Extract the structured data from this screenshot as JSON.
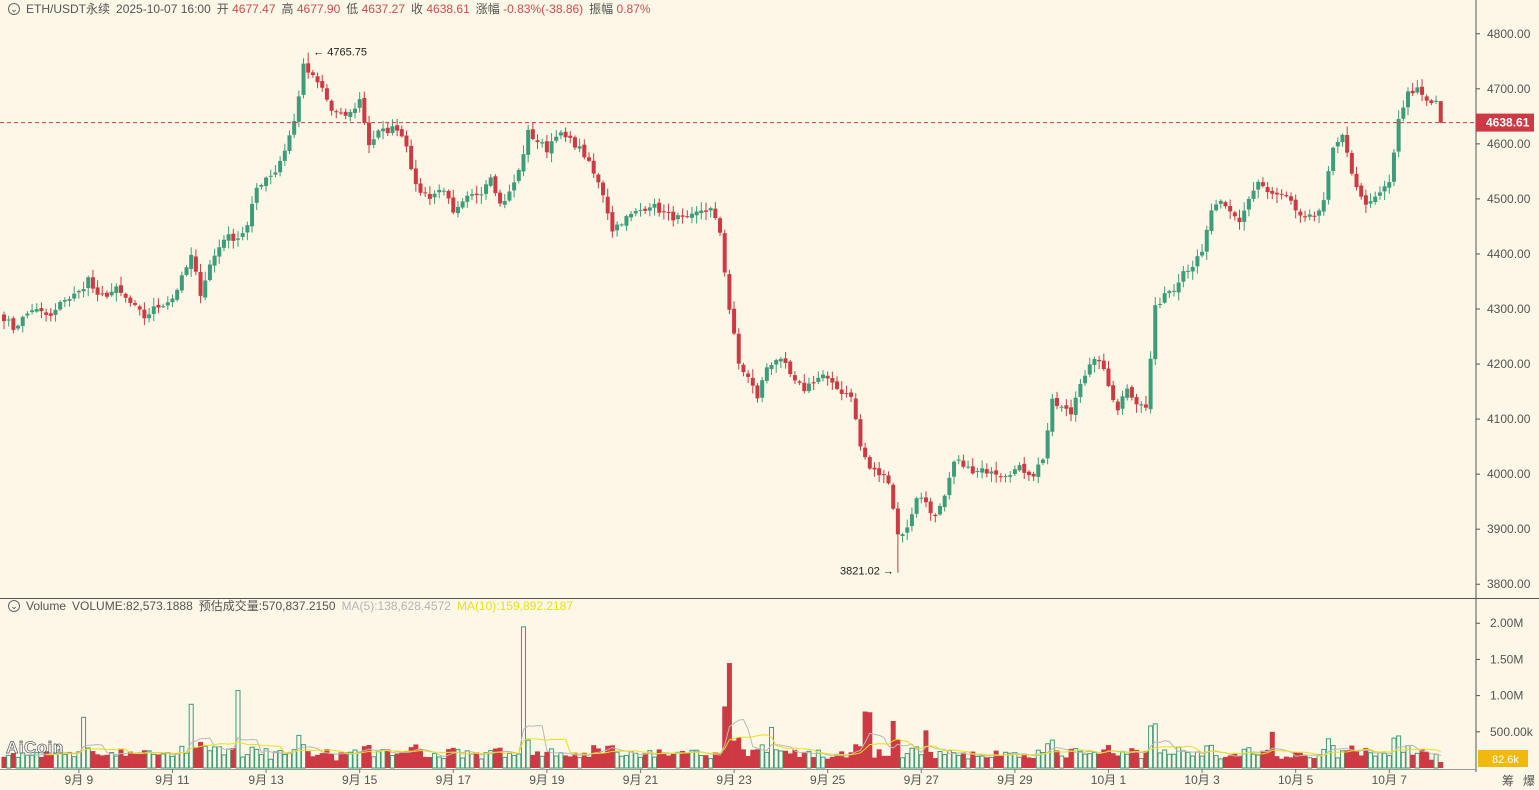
{
  "header": {
    "symbol": "ETH/USDT永续",
    "datetime": "2025-10-07 16:00",
    "open_label": "开",
    "open": "4677.47",
    "high_label": "高",
    "high": "4677.90",
    "low_label": "低",
    "low": "4637.27",
    "close_label": "收",
    "close": "4638.61",
    "change_label": "涨幅",
    "change": "-0.83%(-38.86)",
    "amplitude_label": "振幅",
    "amplitude": "0.87%"
  },
  "volume_header": {
    "name": "Volume",
    "volume": "VOLUME:82,573.1888",
    "estimate": "预估成交量:570,837.2150",
    "ma5": "MA(5):138,628.4572",
    "ma10": "MA(10):159,892.2187"
  },
  "logo": "AiCoin",
  "corner_left": "筹",
  "corner_right": "爆",
  "colors": {
    "up": "#3d9d7b",
    "down": "#cd3a43",
    "background": "#fcf7e6",
    "ma5": "#b9b9b9",
    "ma10": "#ece01a"
  },
  "chart_data": {
    "type": "candlestick",
    "interval": "4h",
    "price_axis": {
      "ticks": [
        3800,
        3900,
        4000,
        4100,
        4200,
        4300,
        4400,
        4500,
        4600,
        4700,
        4800
      ],
      "tick_labels": [
        "3800.00",
        "3900.00",
        "4000.00",
        "4100.00",
        "4200.00",
        "4300.00",
        "4400.00",
        "4500.00",
        "4600.00",
        "4700.00",
        "4800.00"
      ],
      "range": [
        3775,
        4825
      ]
    },
    "volume_axis": {
      "ticks": [
        500000,
        1000000,
        1500000,
        2000000
      ],
      "tick_labels": [
        "500.00k",
        "1.00M",
        "1.50M",
        "2.00M"
      ],
      "range": [
        0,
        2100000
      ]
    },
    "x_labels": [
      {
        "label": "9月 9",
        "index": 16
      },
      {
        "label": "9月 11",
        "index": 36
      },
      {
        "label": "9月 13",
        "index": 56
      },
      {
        "label": "9月 15",
        "index": 76
      },
      {
        "label": "9月 17",
        "index": 96
      },
      {
        "label": "9月 19",
        "index": 116
      },
      {
        "label": "9月 21",
        "index": 136
      },
      {
        "label": "9月 23",
        "index": 156
      },
      {
        "label": "9月 25",
        "index": 176
      },
      {
        "label": "9月 27",
        "index": 196
      },
      {
        "label": "9月 29",
        "index": 216
      },
      {
        "label": "10月 1",
        "index": 236
      },
      {
        "label": "10月 3",
        "index": 256
      },
      {
        "label": "10月 5",
        "index": 276
      },
      {
        "label": "10月 7",
        "index": 296
      }
    ],
    "last_price": 4638.61,
    "last_price_label": "4638.61",
    "last_volume_label": "82.6k",
    "annotations": [
      {
        "text": "4765.75",
        "index": 65,
        "price": 4765.75,
        "type": "high"
      },
      {
        "text": "3821.02",
        "index": 191,
        "price": 3821.02,
        "type": "low"
      }
    ],
    "keypoints": [
      [
        0,
        4285
      ],
      [
        2,
        4265
      ],
      [
        6,
        4300
      ],
      [
        10,
        4285
      ],
      [
        13,
        4320
      ],
      [
        14,
        4320
      ],
      [
        16,
        4330
      ],
      [
        18,
        4355
      ],
      [
        20,
        4320
      ],
      [
        24,
        4335
      ],
      [
        30,
        4285
      ],
      [
        32,
        4300
      ],
      [
        36,
        4320
      ],
      [
        38,
        4355
      ],
      [
        40,
        4395
      ],
      [
        42,
        4330
      ],
      [
        44,
        4380
      ],
      [
        47,
        4430
      ],
      [
        50,
        4430
      ],
      [
        52,
        4450
      ],
      [
        54,
        4520
      ],
      [
        56,
        4540
      ],
      [
        58,
        4550
      ],
      [
        60,
        4590
      ],
      [
        62,
        4640
      ],
      [
        64,
        4740
      ],
      [
        66,
        4720
      ],
      [
        68,
        4700
      ],
      [
        70,
        4660
      ],
      [
        72,
        4650
      ],
      [
        74,
        4655
      ],
      [
        76,
        4680
      ],
      [
        78,
        4600
      ],
      [
        80,
        4620
      ],
      [
        84,
        4630
      ],
      [
        86,
        4600
      ],
      [
        88,
        4520
      ],
      [
        91,
        4505
      ],
      [
        94,
        4520
      ],
      [
        96,
        4470
      ],
      [
        99,
        4500
      ],
      [
        102,
        4515
      ],
      [
        104,
        4545
      ],
      [
        106,
        4490
      ],
      [
        108,
        4510
      ],
      [
        110,
        4550
      ],
      [
        112,
        4620
      ],
      [
        114,
        4605
      ],
      [
        116,
        4590
      ],
      [
        118,
        4620
      ],
      [
        120,
        4610
      ],
      [
        122,
        4600
      ],
      [
        124,
        4580
      ],
      [
        126,
        4545
      ],
      [
        128,
        4510
      ],
      [
        130,
        4445
      ],
      [
        132,
        4460
      ],
      [
        135,
        4475
      ],
      [
        138,
        4490
      ],
      [
        142,
        4470
      ],
      [
        146,
        4460
      ],
      [
        149,
        4480
      ],
      [
        151,
        4480
      ],
      [
        152,
        4460
      ],
      [
        153,
        4440
      ],
      [
        155,
        4300
      ],
      [
        157,
        4200
      ],
      [
        159,
        4175
      ],
      [
        161,
        4140
      ],
      [
        163,
        4195
      ],
      [
        165,
        4210
      ],
      [
        167,
        4195
      ],
      [
        169,
        4165
      ],
      [
        171,
        4155
      ],
      [
        173,
        4170
      ],
      [
        175,
        4180
      ],
      [
        177,
        4160
      ],
      [
        179,
        4150
      ],
      [
        181,
        4145
      ],
      [
        183,
        4050
      ],
      [
        185,
        4010
      ],
      [
        187,
        4000
      ],
      [
        189,
        3990
      ],
      [
        191,
        3890
      ],
      [
        193,
        3900
      ],
      [
        195,
        3960
      ],
      [
        197,
        3950
      ],
      [
        199,
        3920
      ],
      [
        201,
        3955
      ],
      [
        203,
        4020
      ],
      [
        205,
        4020
      ],
      [
        207,
        4000
      ],
      [
        209,
        4005
      ],
      [
        211,
        4010
      ],
      [
        213,
        4000
      ],
      [
        215,
        4005
      ],
      [
        217,
        4010
      ],
      [
        220,
        4000
      ],
      [
        222,
        4030
      ],
      [
        224,
        4130
      ],
      [
        226,
        4120
      ],
      [
        228,
        4110
      ],
      [
        230,
        4170
      ],
      [
        232,
        4195
      ],
      [
        234,
        4210
      ],
      [
        236,
        4160
      ],
      [
        238,
        4120
      ],
      [
        240,
        4160
      ],
      [
        242,
        4130
      ],
      [
        244,
        4120
      ],
      [
        246,
        4300
      ],
      [
        248,
        4330
      ],
      [
        250,
        4340
      ],
      [
        252,
        4370
      ],
      [
        254,
        4380
      ],
      [
        256,
        4400
      ],
      [
        258,
        4480
      ],
      [
        260,
        4490
      ],
      [
        262,
        4475
      ],
      [
        264,
        4460
      ],
      [
        266,
        4500
      ],
      [
        268,
        4530
      ],
      [
        270,
        4510
      ],
      [
        272,
        4505
      ],
      [
        274,
        4500
      ],
      [
        276,
        4480
      ],
      [
        278,
        4460
      ],
      [
        280,
        4470
      ],
      [
        282,
        4500
      ],
      [
        284,
        4590
      ],
      [
        286,
        4610
      ],
      [
        288,
        4550
      ],
      [
        290,
        4500
      ],
      [
        292,
        4490
      ],
      [
        294,
        4510
      ],
      [
        296,
        4530
      ],
      [
        298,
        4640
      ],
      [
        300,
        4690
      ],
      [
        302,
        4700
      ],
      [
        304,
        4680
      ],
      [
        306,
        4677
      ],
      [
        307,
        4638.61
      ]
    ]
  }
}
